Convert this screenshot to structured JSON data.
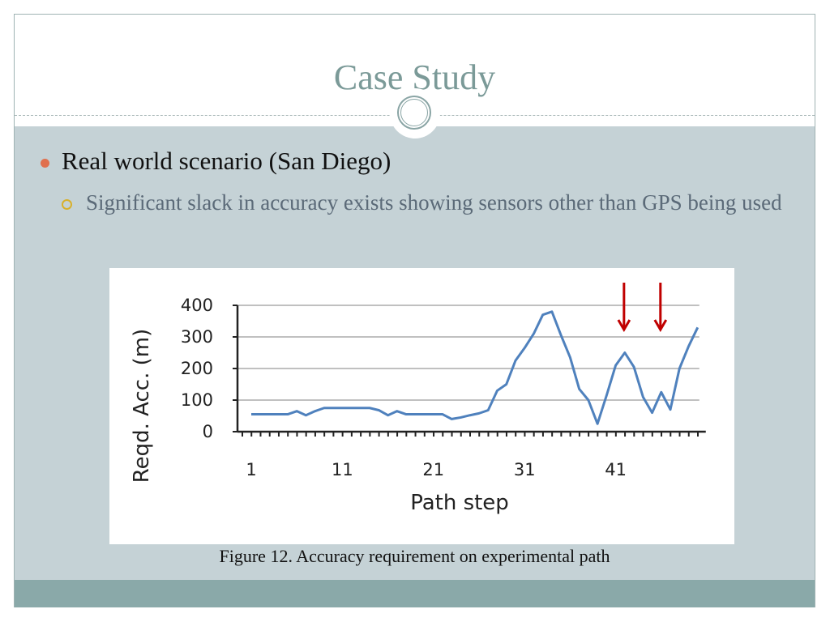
{
  "slide": {
    "title": "Case Study",
    "bullets": [
      {
        "text": "Real world scenario (San Diego)",
        "level": 1
      },
      {
        "text": "Significant slack in accuracy exists showing sensors other than GPS being used",
        "level": 2
      }
    ],
    "caption": "Figure 12. Accuracy requirement on experimental path"
  },
  "colors": {
    "title": "#7b9a98",
    "body_bg": "#c5d2d6",
    "footer_bg": "#8aa9a9",
    "bullet1": "#e0704e",
    "bullet2": "#d8b02a",
    "line": "#4f81bd",
    "arrow": "#c00000"
  },
  "chart_data": {
    "type": "line",
    "title": "",
    "xlabel": "Path step",
    "ylabel": "Reqd. Acc. (m)",
    "ylim": [
      0,
      400
    ],
    "yticks": [
      0,
      100,
      200,
      300,
      400
    ],
    "xtick_labels": [
      "1",
      "11",
      "21",
      "31",
      "41"
    ],
    "grid": true,
    "legend": null,
    "x": [
      1,
      2,
      3,
      4,
      5,
      6,
      7,
      8,
      9,
      10,
      11,
      12,
      13,
      14,
      15,
      16,
      17,
      18,
      19,
      20,
      21,
      22,
      23,
      24,
      25,
      26,
      27,
      28,
      29,
      30,
      31,
      32,
      33,
      34,
      35,
      36,
      37,
      38,
      39,
      40,
      41,
      42,
      43,
      44,
      45,
      46,
      47,
      48,
      49,
      50
    ],
    "series": [
      {
        "name": "Reqd. Acc. (m)",
        "values": [
          55,
          55,
          55,
          55,
          55,
          65,
          52,
          65,
          75,
          75,
          75,
          75,
          75,
          75,
          68,
          52,
          65,
          55,
          55,
          55,
          55,
          55,
          40,
          45,
          52,
          58,
          68,
          130,
          150,
          225,
          265,
          310,
          370,
          380,
          305,
          235,
          135,
          100,
          25,
          115,
          210,
          250,
          205,
          110,
          60,
          125,
          70,
          200,
          270,
          330
        ]
      }
    ],
    "annotations": [
      {
        "type": "arrow-down",
        "x": 42,
        "color": "#c00000"
      },
      {
        "type": "arrow-down",
        "x": 46,
        "color": "#c00000"
      }
    ]
  }
}
